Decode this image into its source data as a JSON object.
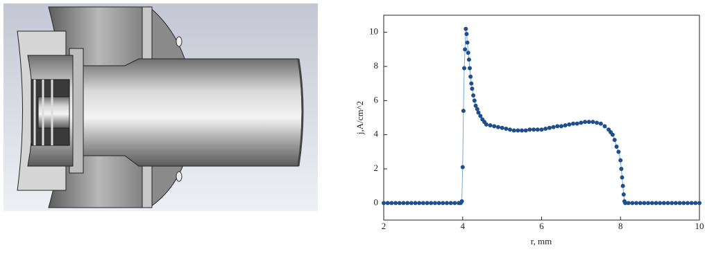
{
  "chart_data": {
    "type": "scatter",
    "x_label": "r, mm",
    "y_label": "j,A/cm^2",
    "color": "#1f4e8c",
    "x": [
      2.0,
      2.1,
      2.2,
      2.3,
      2.4,
      2.5,
      2.6,
      2.7,
      2.8,
      2.9,
      3.0,
      3.1,
      3.2,
      3.3,
      3.4,
      3.5,
      3.6,
      3.7,
      3.8,
      3.9,
      3.95,
      3.98,
      4.0,
      4.02,
      4.04,
      4.06,
      4.08,
      4.1,
      4.12,
      4.14,
      4.16,
      4.18,
      4.2,
      4.22,
      4.24,
      4.27,
      4.3,
      4.33,
      4.37,
      4.4,
      4.45,
      4.5,
      4.55,
      4.6,
      4.7,
      4.8,
      4.9,
      5.0,
      5.1,
      5.2,
      5.3,
      5.4,
      5.5,
      5.6,
      5.7,
      5.8,
      5.9,
      6.0,
      6.1,
      6.2,
      6.3,
      6.4,
      6.5,
      6.6,
      6.7,
      6.8,
      6.9,
      7.0,
      7.1,
      7.2,
      7.3,
      7.4,
      7.5,
      7.6,
      7.7,
      7.75,
      7.8,
      7.85,
      7.9,
      7.95,
      8.0,
      8.02,
      8.04,
      8.06,
      8.08,
      8.1,
      8.12,
      8.2,
      8.3,
      8.4,
      8.5,
      8.6,
      8.7,
      8.8,
      8.9,
      9.0,
      9.1,
      9.2,
      9.3,
      9.4,
      9.5,
      9.6,
      9.7,
      9.8,
      9.9,
      10.0
    ],
    "values": [
      0,
      0,
      0,
      0,
      0,
      0,
      0,
      0,
      0,
      0,
      0,
      0,
      0,
      0,
      0,
      0,
      0,
      0,
      0,
      0,
      0,
      0.1,
      2.1,
      5.4,
      7.9,
      9.0,
      10.2,
      9.9,
      9.4,
      8.8,
      8.4,
      7.9,
      7.4,
      7.0,
      6.7,
      6.3,
      6.0,
      5.7,
      5.5,
      5.3,
      5.1,
      4.9,
      4.75,
      4.6,
      4.55,
      4.5,
      4.45,
      4.4,
      4.35,
      4.3,
      4.25,
      4.25,
      4.25,
      4.25,
      4.3,
      4.3,
      4.3,
      4.3,
      4.35,
      4.4,
      4.45,
      4.5,
      4.5,
      4.55,
      4.6,
      4.65,
      4.65,
      4.7,
      4.75,
      4.75,
      4.75,
      4.7,
      4.65,
      4.5,
      4.3,
      4.15,
      4.0,
      3.7,
      3.3,
      3.0,
      2.5,
      2.0,
      1.5,
      1.0,
      0.5,
      0.1,
      0,
      0,
      0,
      0,
      0,
      0,
      0,
      0,
      0,
      0,
      0,
      0,
      0,
      0,
      0,
      0,
      0,
      0,
      0,
      0
    ],
    "xlim": [
      2,
      10
    ],
    "ylim": [
      -1,
      11
    ],
    "xticks": [
      2,
      4,
      6,
      8,
      10
    ],
    "yticks": [
      0,
      2,
      4,
      6,
      8,
      10
    ]
  }
}
